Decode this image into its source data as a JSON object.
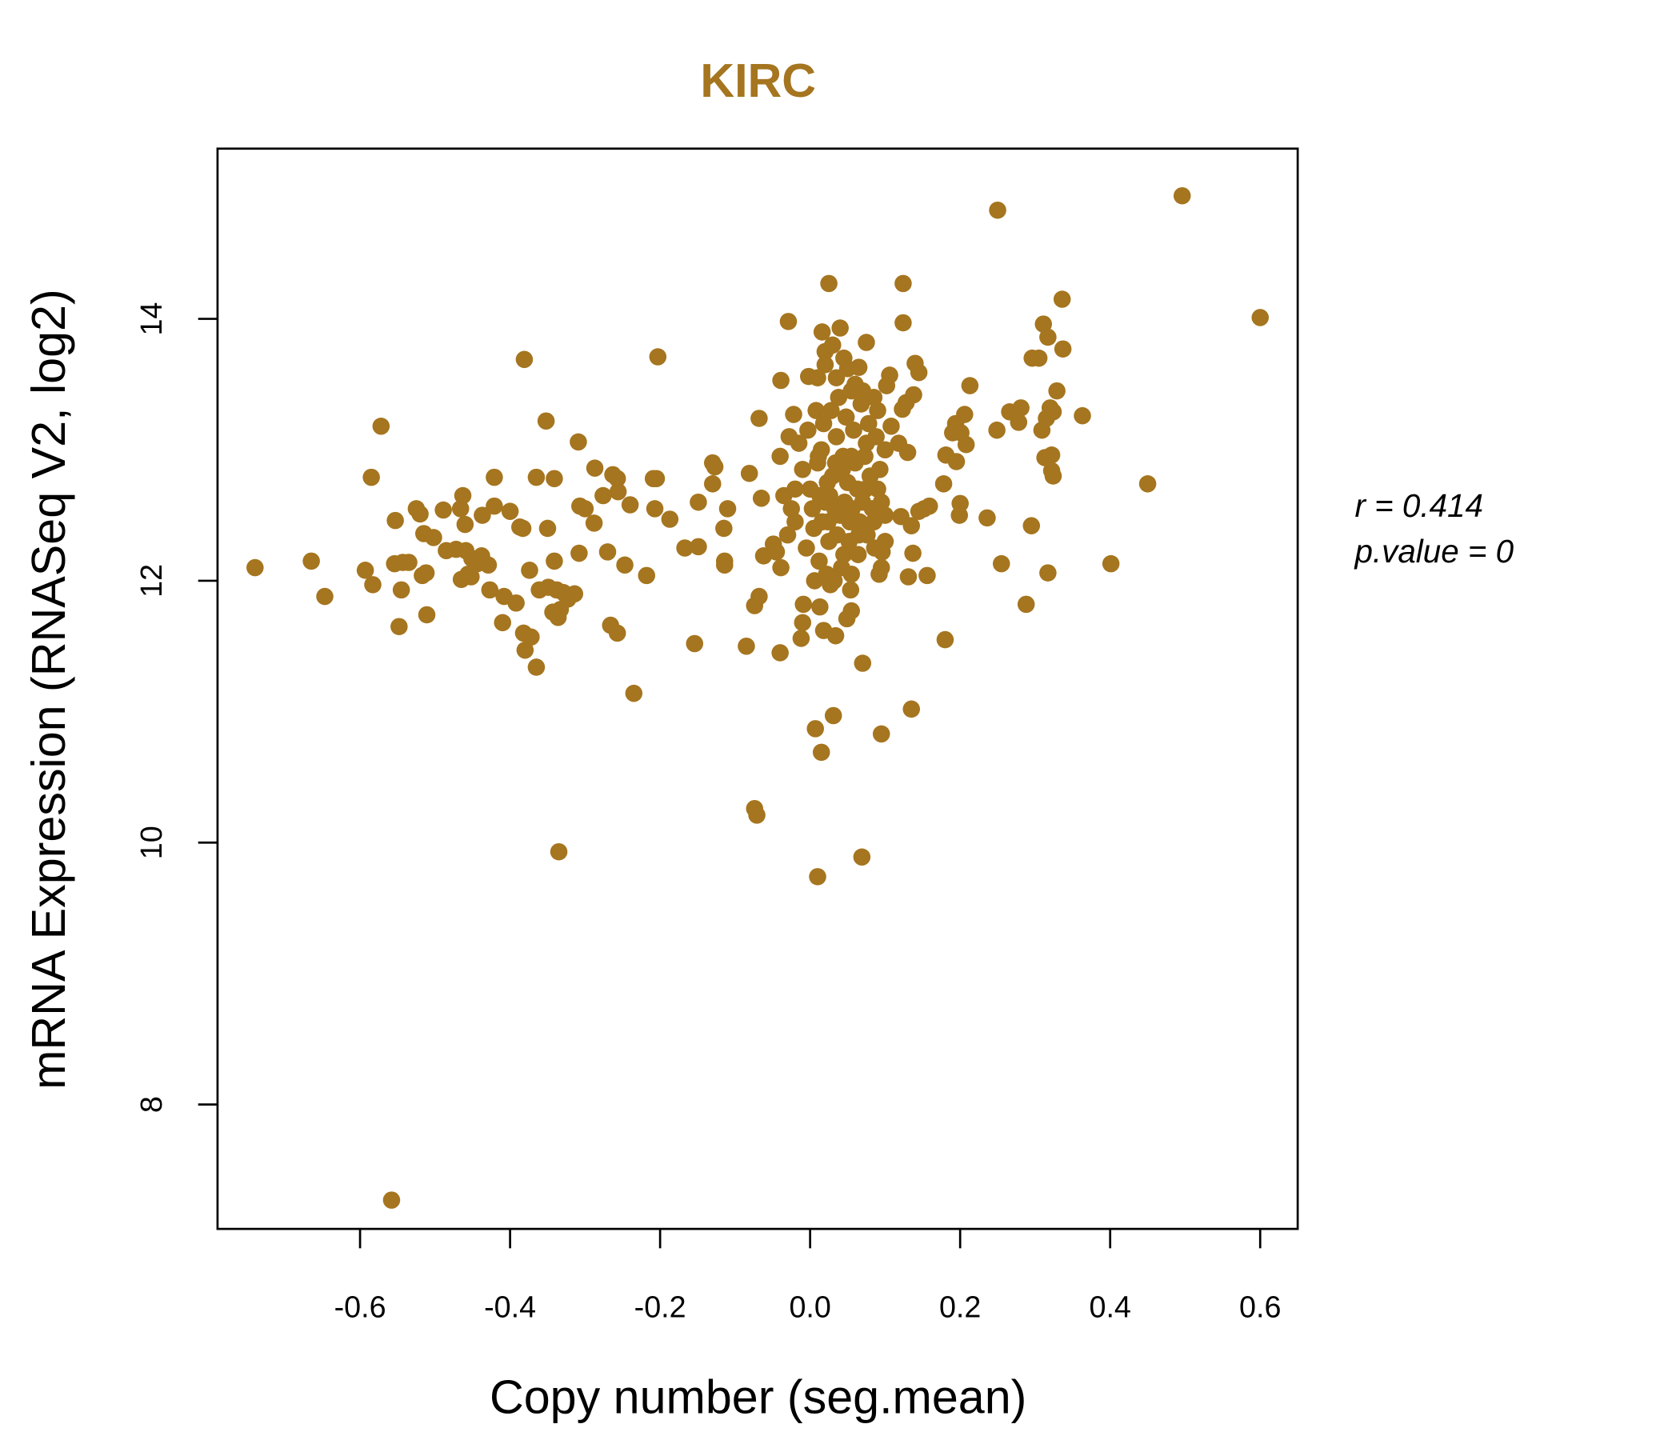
{
  "chart_data": {
    "type": "scatter",
    "title": "KIRC",
    "xlabel": "Copy number (seg.mean)",
    "ylabel": "mRNA Expression (RNASeq V2, log2)",
    "xlim": [
      -0.79,
      0.65
    ],
    "ylim": [
      7.05,
      15.3
    ],
    "xticks": [
      -0.6,
      -0.4,
      -0.2,
      0.0,
      0.2,
      0.4,
      0.6
    ],
    "xtick_labels": [
      "-0.6",
      "-0.4",
      "-0.2",
      "0.0",
      "0.2",
      "0.4",
      "0.6"
    ],
    "yticks": [
      8,
      10,
      12,
      14
    ],
    "ytick_labels": [
      "8",
      "10",
      "12",
      "14"
    ],
    "grid": false,
    "color": "#A5751F",
    "annotations": {
      "r": "r = 0.414",
      "p": "p.value = 0"
    },
    "points": [
      [
        -0.74,
        12.1
      ],
      [
        -0.665,
        12.15
      ],
      [
        -0.647,
        11.88
      ],
      [
        -0.593,
        12.08
      ],
      [
        -0.583,
        11.97
      ],
      [
        -0.585,
        12.79
      ],
      [
        -0.572,
        13.18
      ],
      [
        -0.558,
        7.27
      ],
      [
        -0.553,
        12.46
      ],
      [
        -0.548,
        11.65
      ],
      [
        -0.545,
        11.93
      ],
      [
        -0.554,
        12.13
      ],
      [
        -0.543,
        12.14
      ],
      [
        -0.535,
        12.14
      ],
      [
        -0.525,
        12.55
      ],
      [
        -0.52,
        12.51
      ],
      [
        -0.517,
        12.04
      ],
      [
        -0.512,
        12.06
      ],
      [
        -0.515,
        12.36
      ],
      [
        -0.511,
        11.74
      ],
      [
        -0.502,
        12.33
      ],
      [
        -0.489,
        12.54
      ],
      [
        -0.485,
        12.23
      ],
      [
        -0.472,
        12.24
      ],
      [
        -0.466,
        12.55
      ],
      [
        -0.463,
        12.65
      ],
      [
        -0.46,
        12.43
      ],
      [
        -0.465,
        12.01
      ],
      [
        -0.456,
        12.05
      ],
      [
        -0.452,
        12.03
      ],
      [
        -0.459,
        12.23
      ],
      [
        -0.451,
        12.17
      ],
      [
        -0.444,
        12.13
      ],
      [
        -0.438,
        12.19
      ],
      [
        -0.437,
        12.5
      ],
      [
        -0.429,
        12.12
      ],
      [
        -0.427,
        11.93
      ],
      [
        -0.421,
        12.79
      ],
      [
        -0.421,
        12.57
      ],
      [
        -0.408,
        11.88
      ],
      [
        -0.41,
        11.68
      ],
      [
        -0.4,
        12.53
      ],
      [
        -0.392,
        11.83
      ],
      [
        -0.387,
        12.41
      ],
      [
        -0.383,
        12.4
      ],
      [
        -0.381,
        13.69
      ],
      [
        -0.38,
        11.47
      ],
      [
        -0.382,
        11.6
      ],
      [
        -0.372,
        11.57
      ],
      [
        -0.365,
        11.34
      ],
      [
        -0.374,
        12.08
      ],
      [
        -0.365,
        12.79
      ],
      [
        -0.341,
        12.78
      ],
      [
        -0.352,
        13.22
      ],
      [
        -0.35,
        12.4
      ],
      [
        -0.361,
        11.93
      ],
      [
        -0.349,
        11.95
      ],
      [
        -0.338,
        11.93
      ],
      [
        -0.329,
        11.91
      ],
      [
        -0.323,
        11.86
      ],
      [
        -0.333,
        11.78
      ],
      [
        -0.336,
        11.72
      ],
      [
        -0.343,
        11.76
      ],
      [
        -0.314,
        11.9
      ],
      [
        -0.341,
        12.15
      ],
      [
        -0.335,
        9.93
      ],
      [
        -0.309,
        13.06
      ],
      [
        -0.307,
        12.57
      ],
      [
        -0.3,
        12.55
      ],
      [
        -0.308,
        12.21
      ],
      [
        -0.287,
        12.86
      ],
      [
        -0.288,
        12.44
      ],
      [
        -0.276,
        12.65
      ],
      [
        -0.263,
        12.81
      ],
      [
        -0.257,
        12.78
      ],
      [
        -0.256,
        12.68
      ],
      [
        -0.27,
        12.22
      ],
      [
        -0.266,
        11.66
      ],
      [
        -0.257,
        11.6
      ],
      [
        -0.247,
        12.12
      ],
      [
        -0.24,
        12.58
      ],
      [
        -0.235,
        11.14
      ],
      [
        -0.218,
        12.04
      ],
      [
        -0.209,
        12.78
      ],
      [
        -0.205,
        12.78
      ],
      [
        -0.207,
        12.55
      ],
      [
        -0.203,
        13.71
      ],
      [
        -0.187,
        12.47
      ],
      [
        -0.167,
        12.25
      ],
      [
        -0.154,
        11.52
      ],
      [
        -0.149,
        12.26
      ],
      [
        -0.149,
        12.6
      ],
      [
        -0.13,
        12.9
      ],
      [
        -0.127,
        12.87
      ],
      [
        -0.13,
        12.74
      ],
      [
        -0.115,
        12.4
      ],
      [
        -0.114,
        12.15
      ],
      [
        -0.114,
        12.12
      ],
      [
        -0.11,
        12.55
      ],
      [
        -0.085,
        11.5
      ],
      [
        -0.081,
        12.82
      ],
      [
        -0.074,
        10.26
      ],
      [
        -0.071,
        10.21
      ],
      [
        -0.074,
        11.81
      ],
      [
        -0.068,
        11.88
      ],
      [
        -0.068,
        13.24
      ],
      [
        -0.065,
        12.63
      ],
      [
        -0.062,
        12.19
      ],
      [
        -0.049,
        12.28
      ],
      [
        -0.045,
        12.22
      ],
      [
        -0.04,
        11.45
      ],
      [
        -0.039,
        13.53
      ],
      [
        -0.039,
        12.1
      ],
      [
        -0.029,
        13.98
      ],
      [
        -0.022,
        13.27
      ],
      [
        -0.012,
        11.56
      ],
      [
        -0.01,
        11.68
      ],
      [
        -0.009,
        11.82
      ],
      [
        -0.002,
        13.56
      ],
      [
        0.007,
        10.87
      ],
      [
        0.015,
        10.69
      ],
      [
        0.031,
        10.97
      ],
      [
        0.01,
        9.74
      ],
      [
        0.069,
        9.89
      ],
      [
        0.07,
        11.37
      ],
      [
        0.095,
        10.83
      ],
      [
        0.135,
        11.02
      ],
      [
        0.025,
        14.27
      ],
      [
        0.124,
        14.27
      ],
      [
        0.25,
        14.83
      ],
      [
        0.496,
        14.94
      ],
      [
        0.6,
        14.01
      ],
      [
        0.45,
        12.74
      ],
      [
        0.401,
        12.13
      ],
      [
        0.363,
        13.26
      ],
      [
        0.336,
        14.15
      ],
      [
        0.337,
        13.77
      ],
      [
        0.311,
        13.96
      ],
      [
        0.317,
        13.86
      ],
      [
        0.296,
        13.7
      ],
      [
        0.305,
        13.7
      ],
      [
        0.329,
        13.45
      ],
      [
        0.281,
        13.32
      ],
      [
        0.278,
        13.21
      ],
      [
        0.266,
        13.29
      ],
      [
        0.249,
        13.15
      ],
      [
        0.309,
        13.15
      ],
      [
        0.315,
        13.24
      ],
      [
        0.32,
        13.32
      ],
      [
        0.324,
        13.29
      ],
      [
        0.322,
        12.96
      ],
      [
        0.313,
        12.94
      ],
      [
        0.322,
        12.84
      ],
      [
        0.324,
        12.8
      ],
      [
        0.295,
        12.42
      ],
      [
        0.288,
        11.82
      ],
      [
        0.317,
        12.06
      ],
      [
        0.255,
        12.13
      ],
      [
        0.236,
        12.48
      ],
      [
        0.18,
        11.55
      ],
      [
        0.213,
        13.49
      ],
      [
        0.206,
        13.27
      ],
      [
        0.194,
        13.2
      ],
      [
        0.19,
        13.13
      ],
      [
        0.201,
        13.13
      ],
      [
        0.208,
        13.04
      ],
      [
        0.2,
        12.59
      ],
      [
        0.199,
        12.5
      ],
      [
        0.178,
        12.74
      ],
      [
        0.181,
        12.96
      ],
      [
        0.195,
        12.91
      ],
      [
        0.156,
        12.04
      ],
      [
        0.137,
        12.21
      ],
      [
        0.131,
        12.03
      ],
      [
        0.159,
        12.57
      ],
      [
        0.152,
        12.55
      ],
      [
        0.145,
        12.53
      ],
      [
        0.135,
        12.42
      ],
      [
        0.14,
        13.66
      ],
      [
        0.145,
        13.59
      ],
      [
        0.138,
        13.42
      ],
      [
        0.128,
        13.36
      ],
      [
        0.123,
        13.31
      ],
      [
        0.124,
        13.97
      ],
      [
        0.106,
        13.57
      ],
      [
        0.102,
        13.49
      ],
      [
        0.121,
        12.49
      ],
      [
        0.13,
        12.98
      ],
      [
        0.118,
        13.05
      ],
      [
        0.108,
        13.18
      ],
      [
        0.0,
        12.7
      ],
      [
        0.01,
        12.9
      ],
      [
        0.02,
        12.6
      ],
      [
        0.03,
        12.8
      ],
      [
        0.04,
        12.5
      ],
      [
        0.05,
        12.75
      ],
      [
        0.06,
        12.9
      ],
      [
        0.07,
        12.6
      ],
      [
        0.08,
        12.8
      ],
      [
        0.09,
        12.7
      ],
      [
        0.005,
        12.4
      ],
      [
        0.015,
        13.0
      ],
      [
        0.025,
        12.3
      ],
      [
        0.035,
        13.1
      ],
      [
        0.045,
        12.2
      ],
      [
        0.055,
        12.95
      ],
      [
        0.065,
        12.35
      ],
      [
        0.075,
        13.05
      ],
      [
        0.085,
        12.45
      ],
      [
        0.095,
        12.6
      ],
      [
        -0.01,
        12.85
      ],
      [
        -0.02,
        12.7
      ],
      [
        -0.025,
        12.55
      ],
      [
        -0.015,
        13.05
      ],
      [
        -0.005,
        12.25
      ],
      [
        0.012,
        12.15
      ],
      [
        0.022,
        12.05
      ],
      [
        0.032,
        12.0
      ],
      [
        0.042,
        12.1
      ],
      [
        0.052,
        12.3
      ],
      [
        0.018,
        13.2
      ],
      [
        0.028,
        13.3
      ],
      [
        0.038,
        13.4
      ],
      [
        0.048,
        13.25
      ],
      [
        0.058,
        13.15
      ],
      [
        0.068,
        13.35
      ],
      [
        0.078,
        13.2
      ],
      [
        0.088,
        13.1
      ],
      [
        0.008,
        13.3
      ],
      [
        -0.003,
        13.15
      ],
      [
        0.003,
        12.55
      ],
      [
        0.013,
        12.65
      ],
      [
        0.023,
        12.75
      ],
      [
        0.033,
        12.55
      ],
      [
        0.043,
        12.85
      ],
      [
        0.053,
        12.45
      ],
      [
        0.063,
        12.7
      ],
      [
        0.073,
        12.95
      ],
      [
        0.083,
        12.55
      ],
      [
        0.093,
        12.85
      ],
      [
        0.016,
        13.9
      ],
      [
        0.02,
        13.75
      ],
      [
        0.03,
        13.8
      ],
      [
        0.04,
        13.93
      ],
      [
        0.045,
        13.7
      ],
      [
        0.05,
        13.62
      ],
      [
        0.065,
        13.63
      ],
      [
        0.075,
        13.82
      ],
      [
        0.01,
        13.55
      ],
      [
        0.06,
        13.5
      ],
      [
        0.02,
        13.65
      ],
      [
        0.035,
        13.55
      ],
      [
        0.055,
        13.45
      ],
      [
        0.085,
        13.4
      ],
      [
        0.07,
        13.45
      ],
      [
        0.09,
        13.3
      ],
      [
        0.1,
        13.0
      ],
      [
        0.1,
        12.5
      ],
      [
        0.1,
        12.3
      ],
      [
        0.095,
        12.1
      ],
      [
        0.092,
        12.05
      ],
      [
        0.096,
        12.22
      ],
      [
        0.055,
        12.05
      ],
      [
        0.054,
        11.93
      ],
      [
        0.049,
        11.71
      ],
      [
        0.055,
        11.77
      ],
      [
        0.034,
        11.58
      ],
      [
        0.018,
        11.62
      ],
      [
        0.013,
        11.8
      ],
      [
        0.027,
        11.97
      ],
      [
        0.006,
        12.0
      ],
      [
        0.016,
        12.45
      ],
      [
        0.026,
        12.65
      ],
      [
        0.036,
        12.35
      ],
      [
        0.046,
        12.6
      ],
      [
        0.056,
        12.55
      ],
      [
        0.066,
        12.45
      ],
      [
        0.076,
        12.35
      ],
      [
        0.086,
        12.25
      ],
      [
        0.011,
        12.95
      ],
      [
        -0.03,
        12.35
      ],
      [
        -0.02,
        12.45
      ],
      [
        -0.035,
        12.65
      ],
      [
        -0.04,
        12.95
      ],
      [
        -0.028,
        13.1
      ],
      [
        0.044,
        12.95
      ],
      [
        0.034,
        12.9
      ],
      [
        0.024,
        12.45
      ],
      [
        0.064,
        12.2
      ],
      [
        0.074,
        12.7
      ]
    ]
  }
}
